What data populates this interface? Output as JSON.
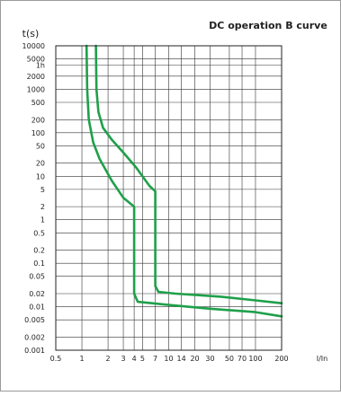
{
  "chart_data": {
    "type": "line",
    "title": "DC operation B curve",
    "ylabel": "t(s)",
    "xlabel": "I/In",
    "x_scale": "log",
    "y_scale": "log",
    "xlim": [
      0.5,
      200
    ],
    "ylim": [
      0.001,
      10000
    ],
    "grid": true,
    "legend": "none",
    "x_ticks": [
      {
        "value": 0.5,
        "label": "0.5"
      },
      {
        "value": 1,
        "label": "1"
      },
      {
        "value": 2,
        "label": "2"
      },
      {
        "value": 3,
        "label": "3"
      },
      {
        "value": 4,
        "label": "4"
      },
      {
        "value": 5,
        "label": "5"
      },
      {
        "value": 7,
        "label": "7"
      },
      {
        "value": 10,
        "label": "10"
      },
      {
        "value": 14,
        "label": "14"
      },
      {
        "value": 20,
        "label": "20"
      },
      {
        "value": 30,
        "label": "30"
      },
      {
        "value": 50,
        "label": "50"
      },
      {
        "value": 70,
        "label": "70"
      },
      {
        "value": 100,
        "label": "100"
      },
      {
        "value": 200,
        "label": "200"
      }
    ],
    "y_ticks": [
      {
        "value": 10000,
        "label": "10000"
      },
      {
        "value": 5000,
        "label": "5000"
      },
      {
        "value": 3600,
        "label": "1h"
      },
      {
        "value": 2000,
        "label": "2000"
      },
      {
        "value": 1000,
        "label": "1000"
      },
      {
        "value": 500,
        "label": "500"
      },
      {
        "value": 200,
        "label": "200"
      },
      {
        "value": 100,
        "label": "100"
      },
      {
        "value": 50,
        "label": "50"
      },
      {
        "value": 20,
        "label": "20"
      },
      {
        "value": 10,
        "label": "10"
      },
      {
        "value": 5,
        "label": "5"
      },
      {
        "value": 2,
        "label": "2"
      },
      {
        "value": 1,
        "label": "1"
      },
      {
        "value": 0.5,
        "label": "0.5"
      },
      {
        "value": 0.2,
        "label": "0.2"
      },
      {
        "value": 0.1,
        "label": "0.1"
      },
      {
        "value": 0.05,
        "label": "0.05"
      },
      {
        "value": 0.02,
        "label": "0.02"
      },
      {
        "value": 0.01,
        "label": "0.01"
      },
      {
        "value": 0.005,
        "label": "0.005"
      },
      {
        "value": 0.002,
        "label": "0.002"
      },
      {
        "value": 0.001,
        "label": "0.001"
      }
    ],
    "series": [
      {
        "color": "#1fa04a",
        "points": [
          [
            1.13,
            10000
          ],
          [
            1.15,
            1000
          ],
          [
            1.2,
            200
          ],
          [
            1.35,
            60
          ],
          [
            1.6,
            25
          ],
          [
            2.2,
            8
          ],
          [
            3.0,
            3.2
          ],
          [
            4.0,
            2.0
          ],
          [
            4.0,
            0.02
          ],
          [
            4.4,
            0.013
          ],
          [
            10,
            0.011
          ],
          [
            30,
            0.009
          ],
          [
            100,
            0.0075
          ],
          [
            200,
            0.006
          ]
        ]
      },
      {
        "color": "#1fa04a",
        "points": [
          [
            1.45,
            10000
          ],
          [
            1.47,
            1000
          ],
          [
            1.55,
            300
          ],
          [
            1.75,
            130
          ],
          [
            2.2,
            70
          ],
          [
            3.0,
            35
          ],
          [
            4.2,
            16
          ],
          [
            6.0,
            6.0
          ],
          [
            7.0,
            4.5
          ],
          [
            7.0,
            0.03
          ],
          [
            7.6,
            0.022
          ],
          [
            12,
            0.02
          ],
          [
            40,
            0.017
          ],
          [
            100,
            0.014
          ],
          [
            200,
            0.012
          ]
        ]
      }
    ]
  }
}
